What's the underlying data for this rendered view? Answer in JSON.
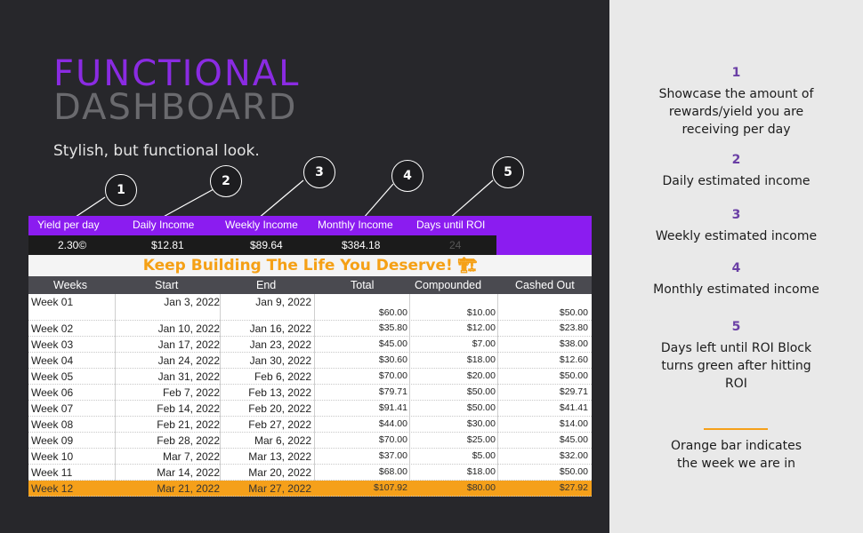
{
  "title_line1": "FUNCTIONAL",
  "title_line2": "DASHBOARD",
  "subtitle": "Stylish, but functional look.",
  "markers": [
    "1",
    "2",
    "3",
    "4",
    "5"
  ],
  "kpi": {
    "headers": [
      "Yield per day",
      "Daily Income",
      "Weekly Income",
      "Monthly Income",
      "Days until ROI"
    ],
    "values": [
      "2.30©",
      "$12.81",
      "$89.64",
      "$384.18",
      "24"
    ]
  },
  "banner": "Keep Building The Life You Deserve! 🏗",
  "table": {
    "columns": [
      "Weeks",
      "Start",
      "End",
      "Total",
      "Compounded",
      "Cashed Out"
    ],
    "rows": [
      [
        "Week 01",
        "Jan 3, 2022",
        "Jan 9, 2022",
        "$60.00",
        "$10.00",
        "$50.00"
      ],
      [
        "Week 02",
        "Jan 10, 2022",
        "Jan 16, 2022",
        "$35.80",
        "$12.00",
        "$23.80"
      ],
      [
        "Week 03",
        "Jan 17, 2022",
        "Jan 23, 2022",
        "$45.00",
        "$7.00",
        "$38.00"
      ],
      [
        "Week 04",
        "Jan 24, 2022",
        "Jan 30, 2022",
        "$30.60",
        "$18.00",
        "$12.60"
      ],
      [
        "Week 05",
        "Jan 31, 2022",
        "Feb 6, 2022",
        "$70.00",
        "$20.00",
        "$50.00"
      ],
      [
        "Week 06",
        "Feb 7, 2022",
        "Feb 13, 2022",
        "$79.71",
        "$50.00",
        "$29.71"
      ],
      [
        "Week 07",
        "Feb 14, 2022",
        "Feb 20, 2022",
        "$91.41",
        "$50.00",
        "$41.41"
      ],
      [
        "Week 08",
        "Feb 21, 2022",
        "Feb 27, 2022",
        "$44.00",
        "$30.00",
        "$14.00"
      ],
      [
        "Week 09",
        "Feb 28, 2022",
        "Mar 6, 2022",
        "$70.00",
        "$25.00",
        "$45.00"
      ],
      [
        "Week 10",
        "Mar 7, 2022",
        "Mar 13, 2022",
        "$37.00",
        "$5.00",
        "$32.00"
      ],
      [
        "Week 11",
        "Mar 14, 2022",
        "Mar 20, 2022",
        "$68.00",
        "$18.00",
        "$50.00"
      ],
      [
        "Week 12",
        "Mar 21, 2022",
        "Mar 27, 2022",
        "$107.92",
        "$80.00",
        "$27.92"
      ]
    ],
    "current_week_index": 11
  },
  "notes": [
    {
      "num": "1",
      "text": "Showcase the amount of rewards/yield you are receiving per day"
    },
    {
      "num": "2",
      "text": "Daily estimated income"
    },
    {
      "num": "3",
      "text": "Weekly estimated income"
    },
    {
      "num": "4",
      "text": "Monthly estimated income"
    },
    {
      "num": "5",
      "text": "Days left until ROI Block turns green after hitting ROI"
    }
  ],
  "orange_note": "Orange bar indicates the week we are in",
  "colors": {
    "accent_purple": "#8b1cf0",
    "current_week_orange": "#f5a01a",
    "background_dark": "#27272b",
    "panel_light": "#e9e9e9"
  }
}
